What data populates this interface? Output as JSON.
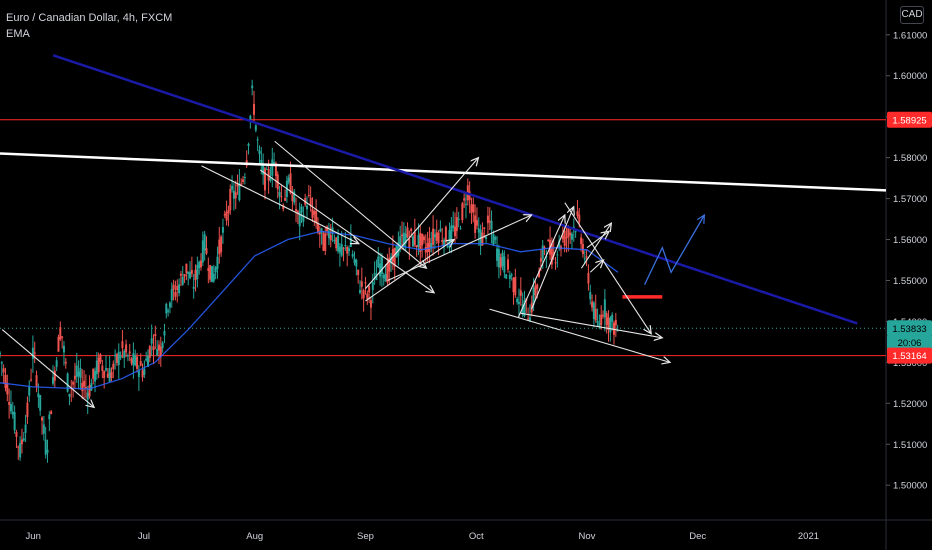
{
  "legend": {
    "symbol": "Euro / Canadian Dollar, 4h, FXCM",
    "indicator": "EMA"
  },
  "currency_badge": "CAD",
  "chart_data": {
    "type": "candlestick",
    "symbol": "EURCAD",
    "timeframe": "4h",
    "quote_currency": "CAD",
    "y_axis": {
      "min": 1.4915,
      "max": 1.6185,
      "ticks": [
        1.5,
        1.51,
        1.52,
        1.53,
        1.54,
        1.55,
        1.56,
        1.57,
        1.58,
        1.59,
        1.6,
        1.61
      ],
      "tick_labels": [
        "1.50000",
        "1.51000",
        "1.52000",
        "1.53000",
        "1.54000",
        "1.55000",
        "1.56000",
        "1.57000",
        "1.58000",
        "1.59000",
        "1.60000",
        "1.61000"
      ]
    },
    "x_axis": {
      "start_month": 5.7,
      "end_month": 13.7,
      "ticks": [
        {
          "label": "Jun",
          "month": 6.0
        },
        {
          "label": "Jul",
          "month": 7.0
        },
        {
          "label": "Aug",
          "month": 8.0
        },
        {
          "label": "Sep",
          "month": 9.0
        },
        {
          "label": "Oct",
          "month": 10.0
        },
        {
          "label": "Nov",
          "month": 11.0
        },
        {
          "label": "Dec",
          "month": 12.0
        },
        {
          "label": "2021",
          "month": 13.0
        }
      ]
    },
    "price_path": [
      [
        5.7,
        1.532
      ],
      [
        5.8,
        1.52
      ],
      [
        5.88,
        1.508
      ],
      [
        5.95,
        1.518
      ],
      [
        6.0,
        1.533
      ],
      [
        6.07,
        1.518
      ],
      [
        6.12,
        1.508
      ],
      [
        6.18,
        1.525
      ],
      [
        6.25,
        1.539
      ],
      [
        6.32,
        1.523
      ],
      [
        6.4,
        1.527
      ],
      [
        6.5,
        1.523
      ],
      [
        6.6,
        1.53
      ],
      [
        6.7,
        1.527
      ],
      [
        6.8,
        1.533
      ],
      [
        6.9,
        1.53
      ],
      [
        7.0,
        1.528
      ],
      [
        7.08,
        1.536
      ],
      [
        7.15,
        1.533
      ],
      [
        7.22,
        1.545
      ],
      [
        7.3,
        1.548
      ],
      [
        7.38,
        1.553
      ],
      [
        7.45,
        1.549
      ],
      [
        7.55,
        1.559
      ],
      [
        7.62,
        1.55
      ],
      [
        7.7,
        1.56
      ],
      [
        7.78,
        1.57
      ],
      [
        7.86,
        1.572
      ],
      [
        7.92,
        1.578
      ],
      [
        7.98,
        1.596
      ],
      [
        8.04,
        1.58
      ],
      [
        8.1,
        1.574
      ],
      [
        8.18,
        1.579
      ],
      [
        8.25,
        1.569
      ],
      [
        8.32,
        1.574
      ],
      [
        8.4,
        1.564
      ],
      [
        8.48,
        1.57
      ],
      [
        8.55,
        1.565
      ],
      [
        8.62,
        1.559
      ],
      [
        8.7,
        1.563
      ],
      [
        8.78,
        1.556
      ],
      [
        8.86,
        1.559
      ],
      [
        8.95,
        1.549
      ],
      [
        9.05,
        1.546
      ],
      [
        9.12,
        1.554
      ],
      [
        9.2,
        1.552
      ],
      [
        9.28,
        1.557
      ],
      [
        9.36,
        1.561
      ],
      [
        9.45,
        1.56
      ],
      [
        9.55,
        1.558
      ],
      [
        9.65,
        1.562
      ],
      [
        9.75,
        1.56
      ],
      [
        9.85,
        1.564
      ],
      [
        9.93,
        1.573
      ],
      [
        9.98,
        1.565
      ],
      [
        10.05,
        1.56
      ],
      [
        10.12,
        1.564
      ],
      [
        10.2,
        1.556
      ],
      [
        10.3,
        1.552
      ],
      [
        10.4,
        1.545
      ],
      [
        10.48,
        1.542
      ],
      [
        10.56,
        1.55
      ],
      [
        10.62,
        1.559
      ],
      [
        10.7,
        1.556
      ],
      [
        10.78,
        1.56
      ],
      [
        10.86,
        1.562
      ],
      [
        10.92,
        1.565
      ],
      [
        10.98,
        1.556
      ],
      [
        11.05,
        1.544
      ],
      [
        11.1,
        1.538
      ],
      [
        11.15,
        1.544
      ],
      [
        11.2,
        1.54
      ],
      [
        11.28,
        1.538
      ]
    ],
    "ema_path": [
      [
        5.7,
        1.525
      ],
      [
        6.0,
        1.524
      ],
      [
        6.5,
        1.5235
      ],
      [
        6.8,
        1.526
      ],
      [
        7.1,
        1.53
      ],
      [
        7.4,
        1.538
      ],
      [
        7.7,
        1.547
      ],
      [
        8.0,
        1.556
      ],
      [
        8.3,
        1.56
      ],
      [
        8.6,
        1.562
      ],
      [
        8.9,
        1.561
      ],
      [
        9.2,
        1.559
      ],
      [
        9.5,
        1.5575
      ],
      [
        9.8,
        1.559
      ],
      [
        10.1,
        1.559
      ],
      [
        10.4,
        1.557
      ],
      [
        10.7,
        1.558
      ],
      [
        11.0,
        1.5575
      ],
      [
        11.28,
        1.552
      ]
    ],
    "horizontal_levels": [
      {
        "name": "resistance",
        "price": 1.58925,
        "label": "1.58925",
        "color": "#ff2a2a"
      },
      {
        "name": "support",
        "price": 1.53164,
        "label": "1.53164",
        "color": "#ff2a2a"
      }
    ],
    "trendlines": [
      {
        "name": "white-trendline",
        "color": "#ffffff",
        "width": 2.5,
        "from": [
          5.7,
          1.581
        ],
        "to": [
          13.7,
          1.572
        ]
      },
      {
        "name": "blue-trendline",
        "color": "#1a1aa6",
        "width": 2.5,
        "from": [
          6.18,
          1.605
        ],
        "to": [
          13.44,
          1.5395
        ]
      }
    ],
    "segment": {
      "name": "red-zone-segment",
      "color": "#ff2a2a",
      "price": 1.546,
      "from": 11.32,
      "to": 11.68
    },
    "arrows": [
      {
        "color": "#e6e6e6",
        "from": [
          5.72,
          1.538
        ],
        "to": [
          6.55,
          1.519
        ]
      },
      {
        "color": "#e6e6e6",
        "from": [
          7.52,
          1.578
        ],
        "to": [
          8.94,
          1.559
        ]
      },
      {
        "color": "#e6e6e6",
        "from": [
          8.05,
          1.577
        ],
        "to": [
          9.62,
          1.547
        ]
      },
      {
        "color": "#e6e6e6",
        "from": [
          8.18,
          1.584
        ],
        "to": [
          9.55,
          1.553
        ]
      },
      {
        "color": "#e6e6e6",
        "from": [
          9.0,
          1.548
        ],
        "to": [
          10.02,
          1.58
        ]
      },
      {
        "color": "#e6e6e6",
        "from": [
          9.0,
          1.545
        ],
        "to": [
          9.8,
          1.56
        ]
      },
      {
        "color": "#e6e6e6",
        "from": [
          9.2,
          1.55
        ],
        "to": [
          10.5,
          1.566
        ]
      },
      {
        "color": "#e6e6e6",
        "from": [
          10.4,
          1.542
        ],
        "to": [
          11.68,
          1.536
        ]
      },
      {
        "color": "#e6e6e6",
        "from": [
          10.38,
          1.541
        ],
        "to": [
          10.8,
          1.566
        ]
      },
      {
        "color": "#e6e6e6",
        "from": [
          10.5,
          1.543
        ],
        "to": [
          10.88,
          1.568
        ]
      },
      {
        "color": "#e6e6e6",
        "from": [
          10.8,
          1.569
        ],
        "to": [
          11.58,
          1.537
        ]
      },
      {
        "color": "#e6e6e6",
        "from": [
          10.95,
          1.553
        ],
        "to": [
          11.22,
          1.564
        ]
      },
      {
        "color": "#e6e6e6",
        "from": [
          11.0,
          1.558
        ],
        "to": [
          11.2,
          1.562
        ]
      },
      {
        "color": "#e6e6e6",
        "from": [
          11.03,
          1.552
        ],
        "to": [
          11.15,
          1.555
        ]
      },
      {
        "color": "#e6e6e6",
        "from": [
          10.12,
          1.543
        ],
        "to": [
          11.75,
          1.53
        ]
      }
    ],
    "projection": {
      "name": "projection-path",
      "color": "#3a6fe0",
      "points": [
        [
          11.52,
          1.549
        ],
        [
          11.68,
          1.558
        ],
        [
          11.76,
          1.552
        ],
        [
          12.06,
          1.566
        ]
      ]
    },
    "price_tags": [
      {
        "name": "current-price-tag",
        "price": 1.53833,
        "label": "1.53833",
        "bg": "#26a69a",
        "text": "dark"
      },
      {
        "name": "countdown-tag",
        "price": 1.5348,
        "label": "20:06",
        "bg": "#26a69a",
        "text": "dark"
      },
      {
        "name": "support-price-tag",
        "price": 1.53164,
        "label": "1.53164",
        "bg": "#ff2a2a",
        "text": "light"
      },
      {
        "name": "resistance-price-tag",
        "price": 1.58925,
        "label": "1.58925",
        "bg": "#ff2a2a",
        "text": "light"
      }
    ],
    "current_price": 1.53833
  }
}
